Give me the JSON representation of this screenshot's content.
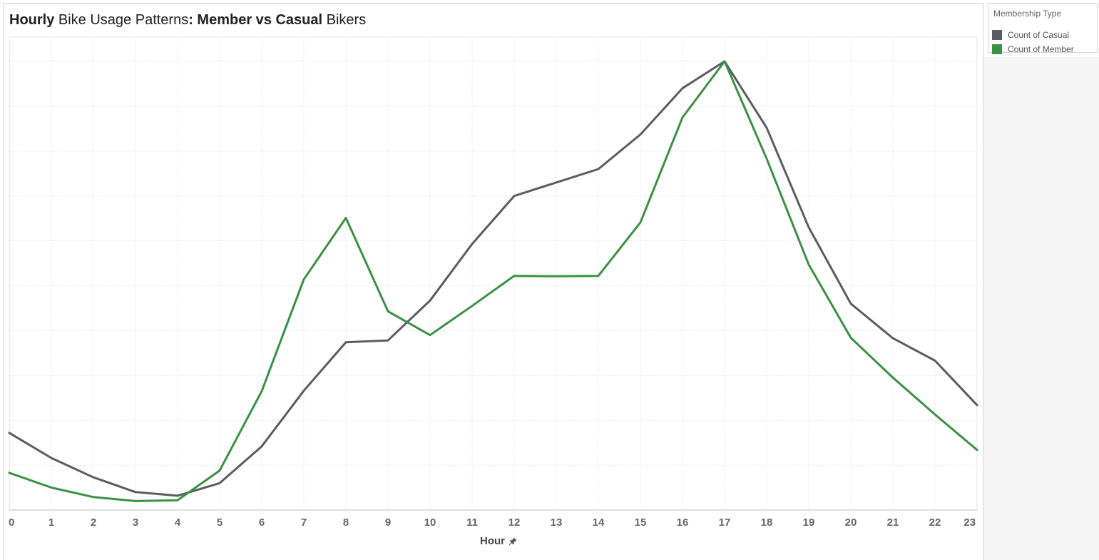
{
  "title": {
    "part1": "Hourly",
    "part2": " Bike Usage Patterns",
    "part3": ": Member vs Casual",
    "part4": " Bikers"
  },
  "legend": {
    "title": "Membership Type",
    "items": [
      {
        "label": "Count of Casual",
        "color": "#5b5b63"
      },
      {
        "label": "Count of Member",
        "color": "#3a9144"
      }
    ]
  },
  "x_axis_title": "Hour",
  "icons": {
    "axis_pin": "pin-icon"
  },
  "chart_data": {
    "type": "line",
    "x": [
      0,
      1,
      2,
      3,
      4,
      5,
      6,
      7,
      8,
      9,
      10,
      11,
      12,
      13,
      14,
      15,
      16,
      17,
      18,
      19,
      20,
      21,
      22,
      23
    ],
    "xlabel": "Hour",
    "ylabel": "",
    "y_labels_shown": false,
    "ylim": [
      0,
      1
    ],
    "grid": true,
    "legend_position": "top-right",
    "series": [
      {
        "name": "Count of Casual",
        "color": "#5b5b63",
        "values": [
          0.172,
          0.116,
          0.073,
          0.04,
          0.032,
          0.06,
          0.142,
          0.266,
          0.374,
          0.378,
          0.467,
          0.593,
          0.7,
          0.73,
          0.76,
          0.837,
          0.94,
          1.0,
          0.852,
          0.63,
          0.46,
          0.383,
          0.333,
          0.234
        ]
      },
      {
        "name": "Count of Member",
        "color": "#3a9144",
        "values": [
          0.083,
          0.05,
          0.029,
          0.02,
          0.022,
          0.088,
          0.265,
          0.514,
          0.651,
          0.443,
          0.39,
          0.455,
          0.522,
          0.521,
          0.522,
          0.641,
          0.875,
          1.0,
          0.783,
          0.547,
          0.384,
          0.295,
          0.213,
          0.134
        ]
      }
    ]
  }
}
